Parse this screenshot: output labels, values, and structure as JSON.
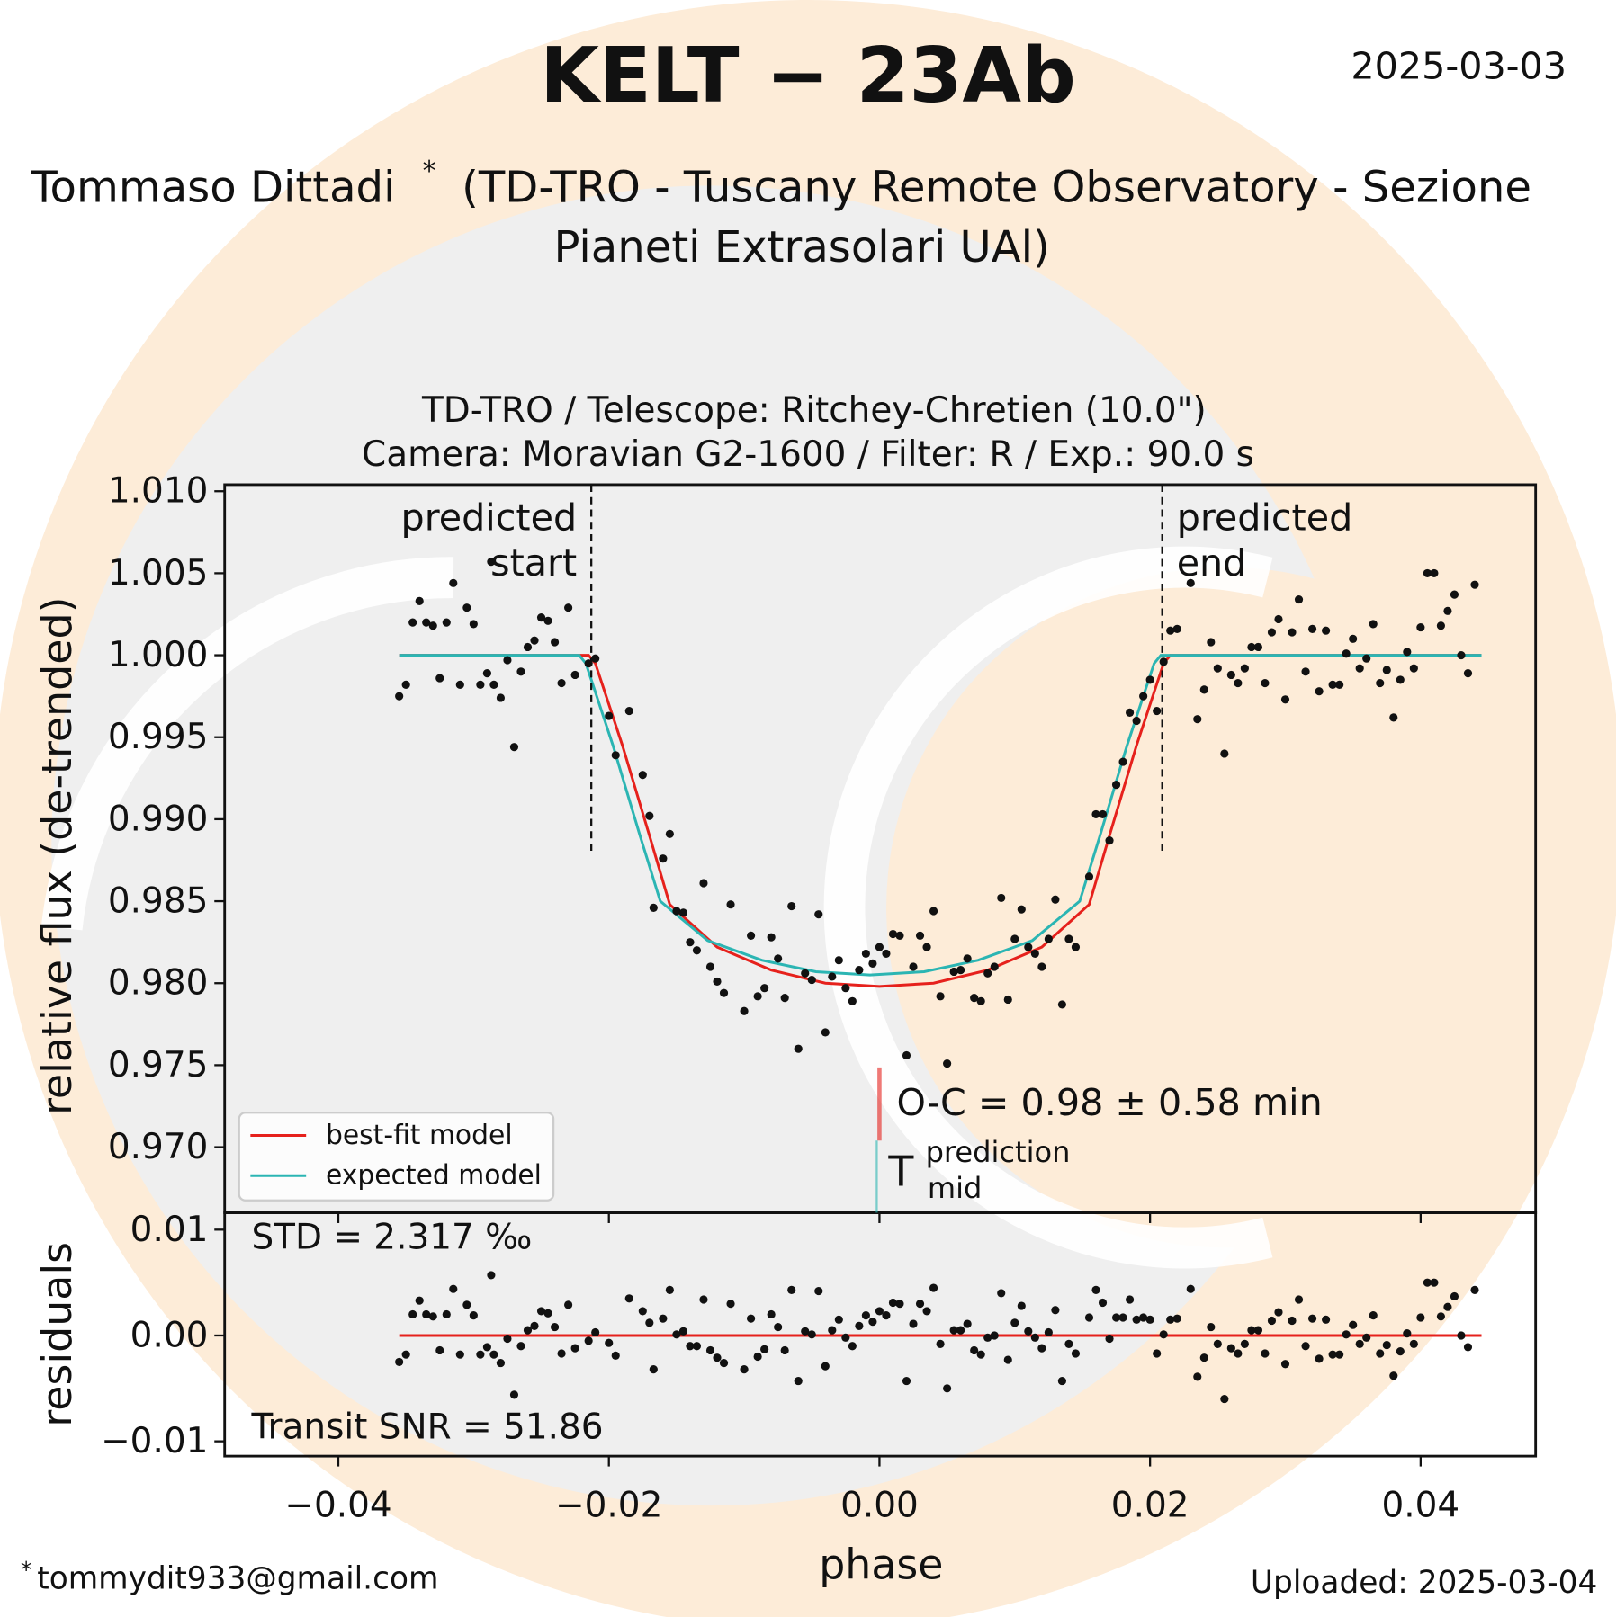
{
  "header": {
    "title": "KELT − 23Ab",
    "date": "2025-03-03",
    "author": "Tommaso Dittadi",
    "author_mark": "*",
    "affiliation": [
      "(TD-TRO - Tuscany Remote Observatory - Sezione",
      "Pianeti Extrasolari UAl)"
    ]
  },
  "footer": {
    "email_mark": "*",
    "email": "tommydit933@gmail.com",
    "uploaded": "Uploaded: 2025-03-04"
  },
  "chart_data": [
    {
      "type": "scatter",
      "subtitle": [
        "TD-TRO / Telescope: Ritchey-Chretien (10.0\")",
        "Camera: Moravian G2-1600 / Filter: R / Exp.: 90.0 s"
      ],
      "ylabel": "relative flux (de-trended)",
      "xlim": [
        -0.0484,
        0.0485
      ],
      "ylim": [
        0.966,
        1.0104
      ],
      "yticks": [
        {
          "value": 0.97,
          "label": "0.970"
        },
        0.975,
        {
          "value": 0.98,
          "label": "0.980"
        },
        0.985,
        {
          "value": 0.99,
          "label": "0.990"
        },
        0.995,
        {
          "value": 1,
          "label": "1.000"
        },
        1.005,
        {
          "value": 1.01,
          "label": "1.010"
        }
      ],
      "color": "#111111",
      "x": [
        -0.0355,
        -0.035,
        -0.0345,
        -0.034,
        -0.0335,
        -0.033,
        -0.0325,
        -0.032,
        -0.0315,
        -0.031,
        -0.0305,
        -0.03,
        -0.0295,
        -0.029,
        -0.0287,
        -0.0285,
        -0.028,
        -0.0275,
        -0.027,
        -0.0265,
        -0.026,
        -0.0255,
        -0.025,
        -0.0245,
        -0.024,
        -0.0235,
        -0.023,
        -0.0225,
        -0.0215,
        -0.021,
        -0.02,
        -0.0195,
        -0.0185,
        -0.0175,
        -0.017,
        -0.0167,
        -0.016,
        -0.0155,
        -0.015,
        -0.0145,
        -0.014,
        -0.0135,
        -0.013,
        -0.0125,
        -0.012,
        -0.0115,
        -0.011,
        -0.01,
        -0.0095,
        -0.009,
        -0.0085,
        -0.008,
        -0.0075,
        -0.007,
        -0.0065,
        -0.006,
        -0.0055,
        -0.005,
        -0.0045,
        -0.004,
        -0.0035,
        -0.003,
        -0.0025,
        -0.002,
        -0.0015,
        -0.001,
        -0.0005,
        0,
        0.0005,
        0.001,
        0.0015,
        0.002,
        0.0025,
        0.003,
        0.0035,
        0.004,
        0.0045,
        0.005,
        0.0055,
        0.006,
        0.0065,
        0.007,
        0.0075,
        0.008,
        0.0085,
        0.009,
        0.0095,
        0.01,
        0.0105,
        0.011,
        0.0115,
        0.012,
        0.0125,
        0.013,
        0.0135,
        0.014,
        0.0145,
        0.0155,
        0.016,
        0.0165,
        0.017,
        0.0175,
        0.018,
        0.0185,
        0.019,
        0.0195,
        0.02,
        0.0205,
        0.021,
        0.0215,
        0.022,
        0.023,
        0.0235,
        0.024,
        0.0245,
        0.025,
        0.0255,
        0.026,
        0.0265,
        0.027,
        0.0275,
        0.028,
        0.0285,
        0.029,
        0.0295,
        0.03,
        0.0305,
        0.031,
        0.0315,
        0.032,
        0.0325,
        0.033,
        0.0335,
        0.034,
        0.0345,
        0.035,
        0.0355,
        0.036,
        0.0365,
        0.037,
        0.0375,
        0.038,
        0.0385,
        0.039,
        0.0395,
        0.04,
        0.0405,
        0.041,
        0.0415,
        0.042,
        0.0425,
        0.043,
        0.0435,
        0.044
      ],
      "values": [
        0.9975,
        0.9982,
        1.002,
        1.0033,
        1.002,
        1.0018,
        0.9986,
        1.002,
        1.0044,
        0.9982,
        1.0029,
        1.0019,
        0.9982,
        0.9989,
        1.0057,
        0.9982,
        0.9974,
        0.9997,
        0.9944,
        0.999,
        1.0005,
        1.0009,
        1.0023,
        1.0021,
        1.0008,
        0.9983,
        1.0029,
        0.9988,
        0.9995,
        0.9998,
        0.9963,
        0.9939,
        0.9966,
        0.9927,
        0.9902,
        0.9846,
        0.9876,
        0.9891,
        0.9844,
        0.9843,
        0.9825,
        0.982,
        0.9861,
        0.981,
        0.9801,
        0.9794,
        0.9848,
        0.9783,
        0.9829,
        0.9792,
        0.9797,
        0.9828,
        0.9815,
        0.9791,
        0.9847,
        0.976,
        0.9806,
        0.9802,
        0.9842,
        0.977,
        0.9804,
        0.9814,
        0.9797,
        0.9789,
        0.9808,
        0.9818,
        0.9812,
        0.9822,
        0.9818,
        0.983,
        0.9829,
        0.9756,
        0.981,
        0.9829,
        0.9822,
        0.9844,
        0.9792,
        0.9751,
        0.9807,
        0.9808,
        0.9815,
        0.9791,
        0.9789,
        0.9806,
        0.981,
        0.9852,
        0.979,
        0.9827,
        0.9845,
        0.9822,
        0.9818,
        0.981,
        0.9827,
        0.9851,
        0.9787,
        0.9827,
        0.9822,
        0.9865,
        0.9903,
        0.9903,
        0.9887,
        0.9921,
        0.9935,
        0.9965,
        0.996,
        0.9975,
        0.9985,
        0.9966,
        0.9996,
        1.0015,
        1.0016,
        1.0044,
        0.9961,
        0.9979,
        1.0008,
        0.9992,
        0.994,
        0.9988,
        0.9983,
        0.9992,
        1.0005,
        1.0005,
        0.9983,
        1.0014,
        1.0022,
        0.9973,
        1.0014,
        1.0034,
        0.999,
        1.0016,
        0.9978,
        1.0015,
        0.9982,
        0.9982,
        1.0001,
        1.001,
        0.9992,
        0.9998,
        1.0019,
        0.9983,
        0.9991,
        0.9962,
        0.9985,
        1.0002,
        0.9992,
        1.0017,
        1.005,
        1.005,
        1.0018,
        1.0027,
        1.0037,
        1,
        0.9989,
        1.0043
      ],
      "models": [
        {
          "name": "best-fit model",
          "color": "#e6211c",
          "midtime": 0,
          "x": [
            -0.0355,
            -0.0215,
            -0.021,
            -0.019,
            -0.017,
            -0.0155,
            -0.012,
            -0.008,
            -0.004,
            0,
            0.004,
            0.008,
            0.012,
            0.0155,
            0.017,
            0.019,
            0.021,
            0.0215,
            0.0445
          ],
          "values": [
            1,
            1,
            0.9995,
            0.9945,
            0.989,
            0.9848,
            0.9822,
            0.9808,
            0.98,
            0.9798,
            0.98,
            0.9808,
            0.9822,
            0.9848,
            0.989,
            0.9945,
            0.9995,
            1,
            1
          ]
        },
        {
          "name": "expected model",
          "color": "#2bb5b3",
          "midtime": -0.0002,
          "x": [
            -0.0355,
            -0.0222,
            -0.0217,
            -0.0197,
            -0.0177,
            -0.0162,
            -0.0127,
            -0.0087,
            -0.0047,
            -0.0007,
            0.0033,
            0.0073,
            0.0113,
            0.0148,
            0.0163,
            0.0183,
            0.0203,
            0.0208,
            0.0445
          ],
          "values": [
            1,
            1,
            0.9995,
            0.9945,
            0.989,
            0.985,
            0.9826,
            0.9814,
            0.9807,
            0.9805,
            0.9807,
            0.9814,
            0.9826,
            0.985,
            0.989,
            0.9945,
            0.9995,
            1,
            1
          ]
        }
      ],
      "predicted_start": -0.0213,
      "predicted_start_label": [
        "predicted",
        "start"
      ],
      "predicted_end": 0.0209,
      "predicted_end_label": [
        "predicted",
        "end"
      ],
      "oc_label": "O-C = 0.98 ± 0.58 min",
      "tmid_label": "T",
      "tmid_sup": "prediction",
      "tmid_sub": "mid"
    },
    {
      "type": "scatter",
      "xlabel": "phase",
      "ylabel": "residuals",
      "xlim": [
        -0.0484,
        0.0485
      ],
      "ylim": [
        -0.0114,
        0.0116
      ],
      "xticks": [
        {
          "value": -0.04,
          "label": "−0.04"
        },
        {
          "value": -0.02,
          "label": "−0.02"
        },
        {
          "value": 0,
          "label": "0.00"
        },
        {
          "value": 0.02,
          "label": "0.02"
        },
        {
          "value": 0.04,
          "label": "0.04"
        }
      ],
      "yticks": [
        {
          "value": -0.01,
          "label": "−0.01"
        },
        {
          "value": 0,
          "label": "0.00"
        },
        0.01
      ],
      "color": "#111111",
      "x": [
        -0.0355,
        -0.035,
        -0.0345,
        -0.034,
        -0.0335,
        -0.033,
        -0.0325,
        -0.032,
        -0.0315,
        -0.031,
        -0.0305,
        -0.03,
        -0.0295,
        -0.029,
        -0.0287,
        -0.0285,
        -0.028,
        -0.0275,
        -0.027,
        -0.0265,
        -0.026,
        -0.0255,
        -0.025,
        -0.0245,
        -0.024,
        -0.0235,
        -0.023,
        -0.0225,
        -0.0215,
        -0.021,
        -0.02,
        -0.0195,
        -0.0185,
        -0.0175,
        -0.017,
        -0.0167,
        -0.016,
        -0.0155,
        -0.015,
        -0.0145,
        -0.014,
        -0.0135,
        -0.013,
        -0.0125,
        -0.012,
        -0.0115,
        -0.011,
        -0.01,
        -0.0095,
        -0.009,
        -0.0085,
        -0.008,
        -0.0075,
        -0.007,
        -0.0065,
        -0.006,
        -0.0055,
        -0.005,
        -0.0045,
        -0.004,
        -0.0035,
        -0.003,
        -0.0025,
        -0.002,
        -0.0015,
        -0.001,
        -0.0005,
        0,
        0.0005,
        0.001,
        0.0015,
        0.002,
        0.0025,
        0.003,
        0.0035,
        0.004,
        0.0045,
        0.005,
        0.0055,
        0.006,
        0.0065,
        0.007,
        0.0075,
        0.008,
        0.0085,
        0.009,
        0.0095,
        0.01,
        0.0105,
        0.011,
        0.0115,
        0.012,
        0.0125,
        0.013,
        0.0135,
        0.014,
        0.0145,
        0.0155,
        0.016,
        0.0165,
        0.017,
        0.0175,
        0.018,
        0.0185,
        0.019,
        0.0195,
        0.02,
        0.0205,
        0.021,
        0.0215,
        0.022,
        0.023,
        0.0235,
        0.024,
        0.0245,
        0.025,
        0.0255,
        0.026,
        0.0265,
        0.027,
        0.0275,
        0.028,
        0.0285,
        0.029,
        0.0295,
        0.03,
        0.0305,
        0.031,
        0.0315,
        0.032,
        0.0325,
        0.033,
        0.0335,
        0.034,
        0.0345,
        0.035,
        0.0355,
        0.036,
        0.0365,
        0.037,
        0.0375,
        0.038,
        0.0385,
        0.039,
        0.0395,
        0.04,
        0.0405,
        0.041,
        0.0415,
        0.042,
        0.0425,
        0.043,
        0.0435,
        0.044
      ],
      "values": [
        -0.0025,
        -0.0018,
        0.002,
        0.0033,
        0.002,
        0.0018,
        -0.0014,
        0.002,
        0.0044,
        -0.0018,
        0.0029,
        0.0019,
        -0.0018,
        -0.0011,
        0.0057,
        -0.0018,
        -0.0026,
        -0.0003,
        -0.0056,
        -0.001,
        0.0005,
        0.0009,
        0.0023,
        0.0021,
        0.0008,
        -0.0017,
        0.0029,
        -0.0012,
        -0.0005,
        0.0003,
        -0.0007,
        -0.0019,
        0.0035,
        0.0023,
        0.0012,
        -0.0032,
        0.0016,
        0.0043,
        0.0001,
        0.0004,
        -0.001,
        -0.001,
        0.0034,
        -0.0014,
        -0.0021,
        -0.0026,
        0.003,
        -0.0032,
        0.0016,
        -0.002,
        -0.0013,
        0.002,
        0.0008,
        -0.0014,
        0.0043,
        -0.0043,
        0.0004,
        0.0001,
        0.0042,
        -0.0029,
        0.0005,
        0.0015,
        -0.0002,
        -0.001,
        0.0009,
        0.0019,
        0.0013,
        0.0023,
        0.0019,
        0.0031,
        0.003,
        -0.0043,
        0.0011,
        0.003,
        0.0023,
        0.0045,
        -0.0008,
        -0.005,
        0.0005,
        0.0005,
        0.0011,
        -0.0014,
        -0.0018,
        -0.0002,
        0,
        0.004,
        -0.0023,
        0.0012,
        0.0028,
        0.0004,
        -0.0002,
        -0.0012,
        0.0003,
        0.0024,
        -0.0043,
        -0.0008,
        -0.0017,
        0.0017,
        0.0043,
        0.0031,
        -0.0003,
        0.0017,
        0.0017,
        0.0034,
        0.0015,
        0.0017,
        0.0015,
        -0.0017,
        0.0001,
        0.0015,
        0.0016,
        0.0044,
        -0.0039,
        -0.0021,
        0.0008,
        -0.0008,
        -0.006,
        -0.0012,
        -0.0017,
        -0.0008,
        0.0005,
        0.0005,
        -0.0017,
        0.0014,
        0.0022,
        -0.0027,
        0.0014,
        0.0034,
        -0.001,
        0.0016,
        -0.0022,
        0.0015,
        -0.0018,
        -0.0018,
        0.0001,
        0.001,
        -0.0008,
        -0.0002,
        0.0019,
        -0.0017,
        -0.0009,
        -0.0038,
        -0.0015,
        0.0002,
        -0.0008,
        0.0017,
        0.005,
        0.005,
        0.0018,
        0.0027,
        0.0037,
        0,
        -0.0011,
        0.0043
      ],
      "models": [
        {
          "color": "#e6211c",
          "x": [
            -0.0355,
            0.0445
          ],
          "values": [
            0,
            0
          ]
        }
      ],
      "std_label": "STD = 2.317 ‰",
      "snr_label": "Transit SNR = 51.86"
    }
  ]
}
